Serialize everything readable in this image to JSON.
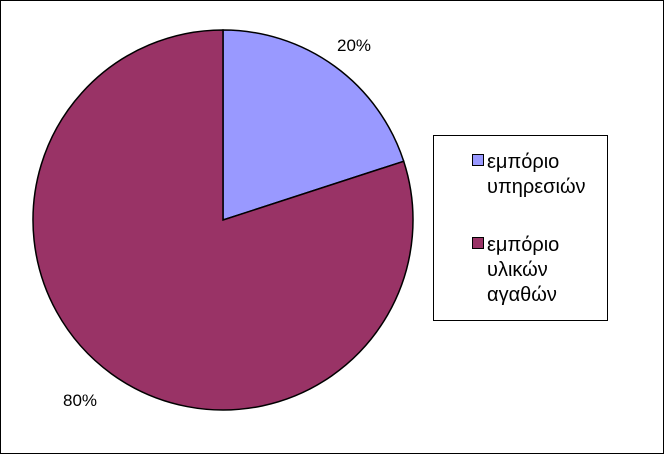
{
  "chart_data": {
    "type": "pie",
    "slices": [
      {
        "label": "εμπόριο υπηρεσιών",
        "value": 20,
        "value_label": "20%",
        "color": "#9999ff"
      },
      {
        "label": "εμπόριο υλικών αγαθών",
        "value": 80,
        "value_label": "80%",
        "color": "#993366"
      }
    ],
    "legend_position": "right"
  },
  "legend": {
    "items": [
      {
        "line1": "εμπόριο",
        "line2": "υπηρεσιών",
        "line3": ""
      },
      {
        "line1": "εμπόριο",
        "line2": "υλικών",
        "line3": "αγαθών"
      }
    ]
  }
}
